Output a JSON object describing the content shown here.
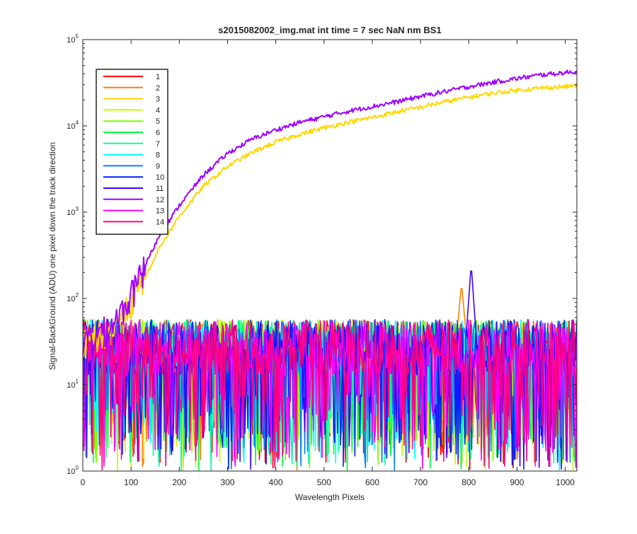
{
  "chart_data": {
    "type": "line",
    "title": "s2015082002_img.mat int time = 7 sec  NaN nm BS1",
    "xlabel": "Wavelength Pixels",
    "ylabel": "Signal-BackGround (ADU) one pixel down the track direction",
    "xlim": [
      0,
      1024
    ],
    "ylim": [
      1,
      100000
    ],
    "yscale": "log",
    "grid": false,
    "legend_position": "top-left",
    "x_ticks": [
      {
        "value": 0,
        "label": "0"
      },
      {
        "value": 100,
        "label": "100"
      },
      {
        "value": 200,
        "label": "200"
      },
      {
        "value": 300,
        "label": "300"
      },
      {
        "value": 400,
        "label": "400"
      },
      {
        "value": 500,
        "label": "500"
      },
      {
        "value": 600,
        "label": "600"
      },
      {
        "value": 700,
        "label": "700"
      },
      {
        "value": 800,
        "label": "800"
      },
      {
        "value": 900,
        "label": "900"
      },
      {
        "value": 1000,
        "label": "1000"
      }
    ],
    "y_ticks": [
      {
        "value": 1,
        "base": "10",
        "exp": "0"
      },
      {
        "value": 10,
        "base": "10",
        "exp": "1"
      },
      {
        "value": 100,
        "base": "10",
        "exp": "2"
      },
      {
        "value": 1000,
        "base": "10",
        "exp": "3"
      },
      {
        "value": 10000,
        "base": "10",
        "exp": "4"
      },
      {
        "value": 100000,
        "base": "10",
        "exp": "5"
      }
    ],
    "series": [
      {
        "name": "1",
        "color": "#ff0000",
        "kind": "noise",
        "level": 27
      },
      {
        "name": "2",
        "color": "#ff7f00",
        "kind": "noise",
        "level": 27,
        "peak": {
          "x": 785,
          "y": 150
        }
      },
      {
        "name": "3",
        "color": "#ffd700",
        "kind": "signal",
        "points": [
          [
            0,
            30
          ],
          [
            60,
            45
          ],
          [
            80,
            60
          ],
          [
            100,
            90
          ],
          [
            130,
            180
          ],
          [
            160,
            400
          ],
          [
            200,
            900
          ],
          [
            250,
            2000
          ],
          [
            300,
            3400
          ],
          [
            350,
            4900
          ],
          [
            400,
            6500
          ],
          [
            450,
            8000
          ],
          [
            500,
            9500
          ],
          [
            550,
            11000
          ],
          [
            600,
            12500
          ],
          [
            650,
            14500
          ],
          [
            700,
            16500
          ],
          [
            750,
            19000
          ],
          [
            800,
            21500
          ],
          [
            850,
            24000
          ],
          [
            900,
            26000
          ],
          [
            950,
            27500
          ],
          [
            1000,
            28500
          ],
          [
            1024,
            29500
          ]
        ]
      },
      {
        "name": "4",
        "color": "#bfff00",
        "kind": "noise",
        "level": 27
      },
      {
        "name": "5",
        "color": "#7fff00",
        "kind": "noise",
        "level": 27
      },
      {
        "name": "6",
        "color": "#00ff40",
        "kind": "noise",
        "level": 27
      },
      {
        "name": "7",
        "color": "#00ffa0",
        "kind": "noise",
        "level": 27
      },
      {
        "name": "8",
        "color": "#00ffff",
        "kind": "noise",
        "level": 27
      },
      {
        "name": "9",
        "color": "#0080ff",
        "kind": "noise",
        "level": 27
      },
      {
        "name": "10",
        "color": "#0020ff",
        "kind": "noise",
        "level": 27
      },
      {
        "name": "11",
        "color": "#4000ff",
        "kind": "noise",
        "level": 27,
        "peak": {
          "x": 805,
          "y": 250
        }
      },
      {
        "name": "12",
        "color": "#a000ff",
        "kind": "signal",
        "points": [
          [
            0,
            30
          ],
          [
            60,
            50
          ],
          [
            80,
            70
          ],
          [
            100,
            110
          ],
          [
            130,
            250
          ],
          [
            160,
            550
          ],
          [
            200,
            1200
          ],
          [
            250,
            2700
          ],
          [
            300,
            4800
          ],
          [
            350,
            7000
          ],
          [
            400,
            9000
          ],
          [
            450,
            11000
          ],
          [
            500,
            12800
          ],
          [
            550,
            14800
          ],
          [
            600,
            16800
          ],
          [
            650,
            19000
          ],
          [
            700,
            22000
          ],
          [
            750,
            25000
          ],
          [
            800,
            28500
          ],
          [
            850,
            32000
          ],
          [
            900,
            35500
          ],
          [
            950,
            39000
          ],
          [
            1000,
            41500
          ],
          [
            1024,
            42500
          ]
        ]
      },
      {
        "name": "13",
        "color": "#ff00ff",
        "kind": "noise",
        "level": 27
      },
      {
        "name": "14",
        "color": "#ff0080",
        "kind": "noise",
        "level": 27
      }
    ]
  }
}
